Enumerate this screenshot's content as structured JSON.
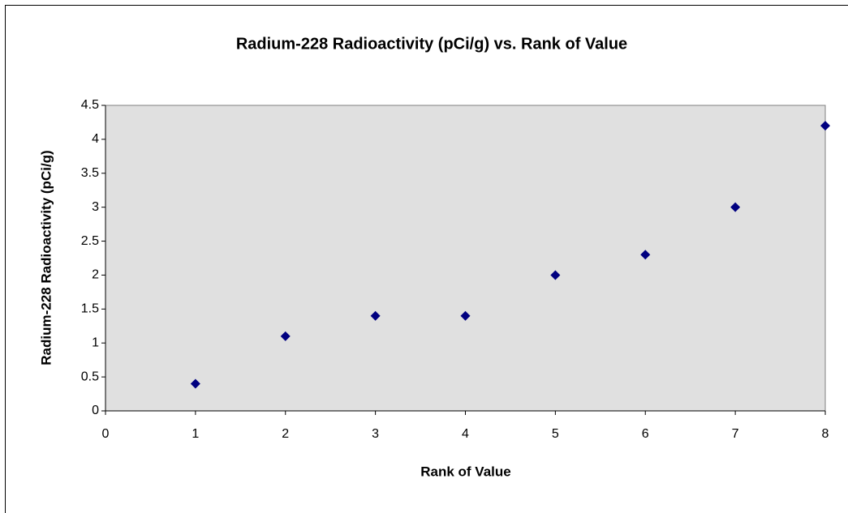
{
  "chart_data": {
    "type": "scatter",
    "title": "Radium-228 Radioactivity (pCi/g) vs. Rank of Value",
    "xlabel": "Rank of Value",
    "ylabel": "Radium-228 Radioactivity (pCi/g)",
    "x": [
      1,
      2,
      3,
      4,
      5,
      6,
      7,
      8
    ],
    "values": [
      0.4,
      1.1,
      1.4,
      1.4,
      2,
      2.3,
      3,
      4.2
    ],
    "color": "#000080",
    "plot_background": "#e0e0e0",
    "xlim": [
      0,
      8
    ],
    "xticks": [
      0,
      1,
      2,
      3,
      4,
      5,
      6,
      7,
      8
    ],
    "ylim": [
      0,
      4.5
    ],
    "yticks": [
      0,
      0.5,
      1,
      1.5,
      2,
      2.5,
      3,
      3.5,
      4,
      4.5
    ],
    "grid": false
  }
}
